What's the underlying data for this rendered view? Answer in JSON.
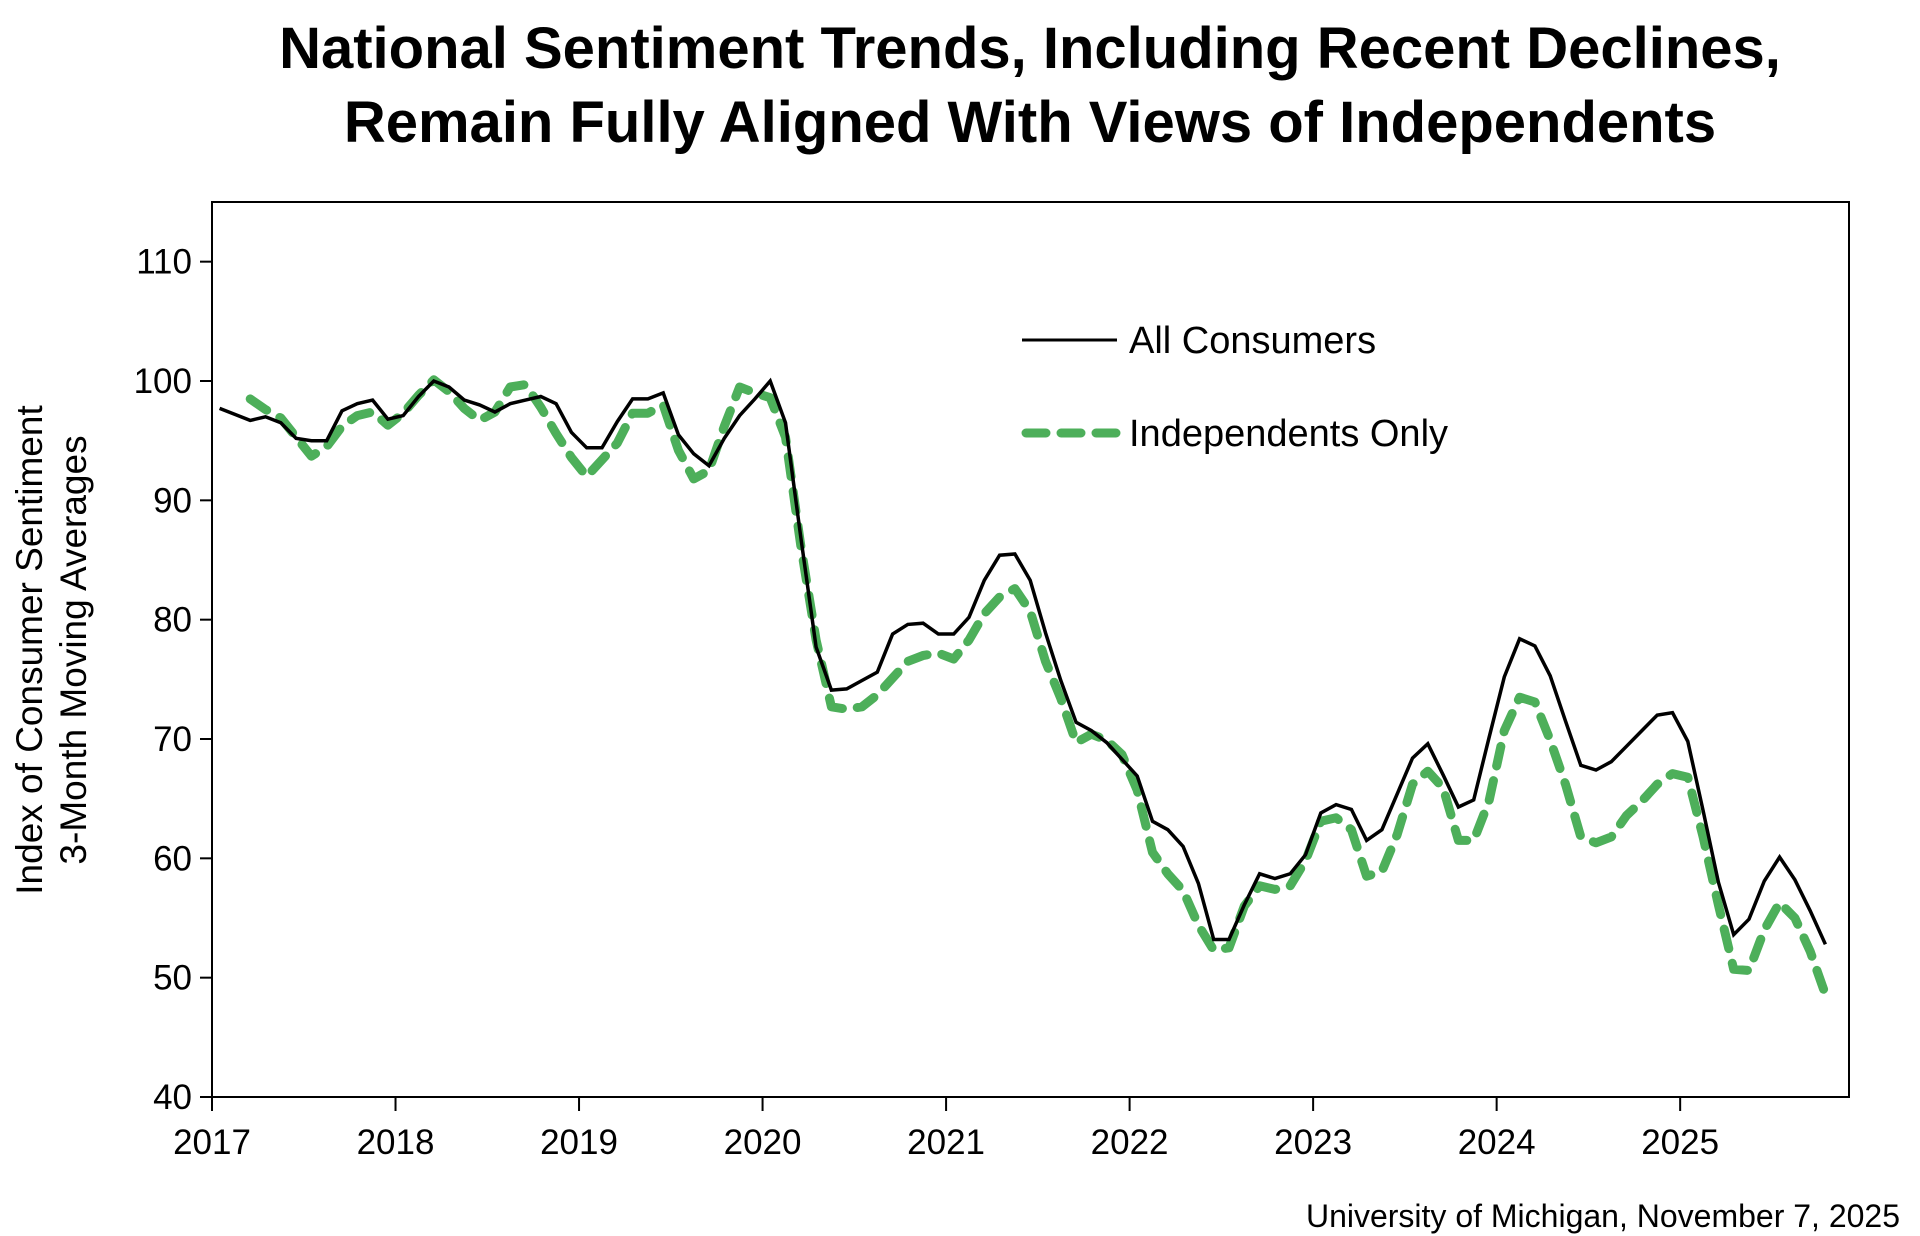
{
  "chart_data": {
    "type": "line",
    "title": [
      "National Sentiment Trends, Including Recent Declines,",
      "Remain Fully Aligned With Views of Independents"
    ],
    "ylabel": [
      "Index of Consumer Sentiment",
      "3-Month Moving Averages"
    ],
    "xlabel": "",
    "source": "University of Michigan, November 7, 2025",
    "ylim": [
      40,
      115
    ],
    "yticks": [
      40,
      50,
      60,
      70,
      80,
      90,
      100,
      110
    ],
    "xticks": [
      "2017",
      "2018",
      "2019",
      "2020",
      "2021",
      "2022",
      "2023",
      "2024",
      "2025"
    ],
    "x_frequency": "monthly",
    "x_start": "2017-01",
    "grid": false,
    "legend_position": "top-right",
    "series": [
      {
        "name": "All Consumers",
        "color": "#000000",
        "style": "solid",
        "start": "2017-01",
        "values": [
          97.7,
          97.2,
          96.7,
          97.0,
          96.5,
          95.2,
          95.0,
          95.0,
          97.5,
          98.1,
          98.4,
          96.8,
          97.1,
          98.7,
          100.0,
          99.5,
          98.4,
          98.0,
          97.4,
          98.1,
          98.4,
          98.7,
          98.1,
          95.7,
          94.4,
          94.4,
          96.6,
          98.5,
          98.5,
          99.0,
          95.5,
          93.9,
          92.9,
          95.2,
          97.1,
          98.5,
          100.0,
          96.5,
          86.9,
          77.7,
          74.1,
          74.2,
          74.9,
          75.6,
          78.8,
          79.6,
          79.7,
          78.8,
          78.8,
          80.2,
          83.3,
          85.4,
          85.5,
          83.3,
          78.9,
          74.9,
          71.4,
          70.7,
          69.7,
          68.3,
          66.9,
          63.1,
          62.4,
          61.0,
          57.9,
          53.2,
          53.2,
          56.1,
          58.7,
          58.3,
          58.7,
          60.3,
          63.8,
          64.5,
          64.1,
          61.5,
          62.4,
          65.4,
          68.4,
          69.6,
          67.0,
          64.3,
          64.9,
          70.1,
          75.2,
          78.4,
          77.8,
          75.3,
          71.5,
          67.8,
          67.4,
          68.1,
          69.4,
          70.7,
          72.0,
          72.2,
          69.8,
          64.0,
          58.0,
          53.6,
          54.9,
          58.1,
          60.1,
          58.2,
          55.6,
          52.8
        ]
      },
      {
        "name": "Independents Only",
        "color": "#4daf5a",
        "style": "dashed",
        "start": "2017-03",
        "values": [
          98.5,
          97.6,
          96.9,
          95.3,
          93.7,
          94.5,
          96.2,
          97.1,
          97.4,
          96.3,
          97.3,
          98.8,
          100.1,
          99.1,
          97.7,
          96.7,
          97.4,
          99.5,
          99.7,
          97.8,
          95.6,
          93.6,
          92.0,
          93.4,
          94.8,
          97.3,
          97.3,
          98.0,
          94.2,
          91.8,
          92.5,
          96.2,
          99.5,
          99.0,
          98.6,
          95.3,
          86.2,
          78.3,
          72.7,
          72.5,
          72.7,
          73.7,
          75.1,
          76.5,
          77.0,
          77.2,
          76.7,
          78.3,
          80.5,
          81.9,
          82.6,
          80.7,
          76.5,
          73.4,
          69.7,
          70.4,
          69.9,
          68.7,
          65.7,
          60.5,
          58.7,
          57.3,
          54.4,
          52.3,
          52.5,
          56.0,
          57.7,
          57.4,
          57.7,
          59.8,
          63.1,
          63.4,
          62.4,
          58.5,
          58.9,
          62.0,
          66.2,
          67.3,
          65.9,
          61.5,
          61.5,
          64.8,
          70.7,
          73.5,
          73.1,
          69.9,
          66.2,
          61.8,
          61.3,
          61.8,
          63.6,
          64.8,
          66.2,
          67.1,
          66.8,
          61.8,
          56.1,
          50.7,
          50.6,
          54.0,
          56.3,
          55.0,
          52.2,
          48.6
        ]
      }
    ]
  }
}
